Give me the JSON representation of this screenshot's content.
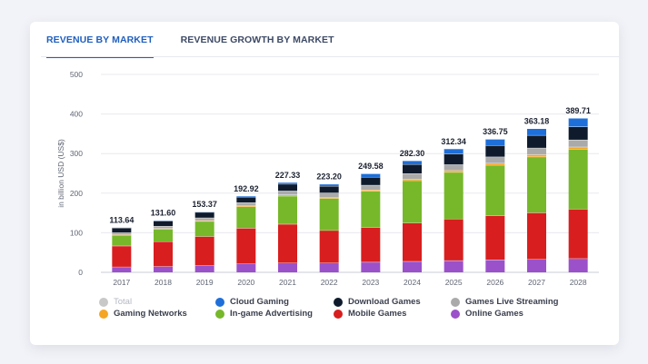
{
  "tabs": [
    {
      "label": "REVENUE BY MARKET",
      "active": true
    },
    {
      "label": "REVENUE GROWTH BY MARKET",
      "active": false
    }
  ],
  "chart_data": {
    "type": "bar",
    "stacked": true,
    "ylabel": "in billion USD (US$)",
    "ylim": [
      0,
      500
    ],
    "yticks": [
      0,
      100,
      200,
      300,
      400,
      500
    ],
    "grid": true,
    "legend_position": "bottom",
    "categories": [
      "2017",
      "2018",
      "2019",
      "2020",
      "2021",
      "2022",
      "2023",
      "2024",
      "2025",
      "2026",
      "2027",
      "2028"
    ],
    "totals": [
      "113.64",
      "131.60",
      "153.37",
      "192.92",
      "227.33",
      "223.20",
      "249.58",
      "282.30",
      "312.34",
      "336.75",
      "363.18",
      "389.71"
    ],
    "series": [
      {
        "name": "Online Games",
        "color": "#9b51c9",
        "values": [
          14,
          15,
          18,
          22,
          24,
          24,
          26,
          28,
          30,
          32,
          33,
          35
        ]
      },
      {
        "name": "Mobile Games",
        "color": "#d81e1e",
        "values": [
          53,
          63,
          73,
          90,
          98,
          82,
          88,
          97,
          105,
          111,
          118,
          125
        ]
      },
      {
        "name": "In-game Advertising",
        "color": "#76b82a",
        "values": [
          27,
          31,
          38,
          54,
          71,
          81,
          91,
          107,
          118,
          128,
          141,
          151
        ]
      },
      {
        "name": "Gaming Networks",
        "color": "#f5a623",
        "values": [
          1.5,
          2,
          2,
          2.5,
          3,
          3,
          3.5,
          4,
          4.5,
          5,
          5.5,
          6
        ]
      },
      {
        "name": "Games Live Streaming",
        "color": "#aaaaaa",
        "values": [
          5,
          6,
          7,
          8,
          10,
          11,
          12,
          14,
          15,
          16,
          17,
          18
        ]
      },
      {
        "name": "Download Games",
        "color": "#0f1b2d",
        "values": [
          12,
          13,
          14,
          14,
          17,
          17,
          20,
          23,
          27,
          29,
          32,
          33
        ]
      },
      {
        "name": "Cloud Gaming",
        "color": "#1e6fd9",
        "values": [
          1.14,
          1.6,
          1.37,
          2.42,
          4.33,
          5.2,
          9.08,
          9.3,
          12.84,
          15.75,
          16.68,
          21.71
        ]
      }
    ]
  },
  "legend": [
    {
      "label": "Total",
      "color": "#c8c8c8",
      "muted": true
    },
    {
      "label": "Cloud Gaming",
      "color": "#1e6fd9",
      "muted": false
    },
    {
      "label": "Download Games",
      "color": "#0f1b2d",
      "muted": false
    },
    {
      "label": "Games Live Streaming",
      "color": "#aaaaaa",
      "muted": false
    },
    {
      "label": "Gaming Networks",
      "color": "#f5a623",
      "muted": false
    },
    {
      "label": "In-game Advertising",
      "color": "#76b82a",
      "muted": false
    },
    {
      "label": "Mobile Games",
      "color": "#d81e1e",
      "muted": false
    },
    {
      "label": "Online Games",
      "color": "#9b51c9",
      "muted": false
    }
  ]
}
